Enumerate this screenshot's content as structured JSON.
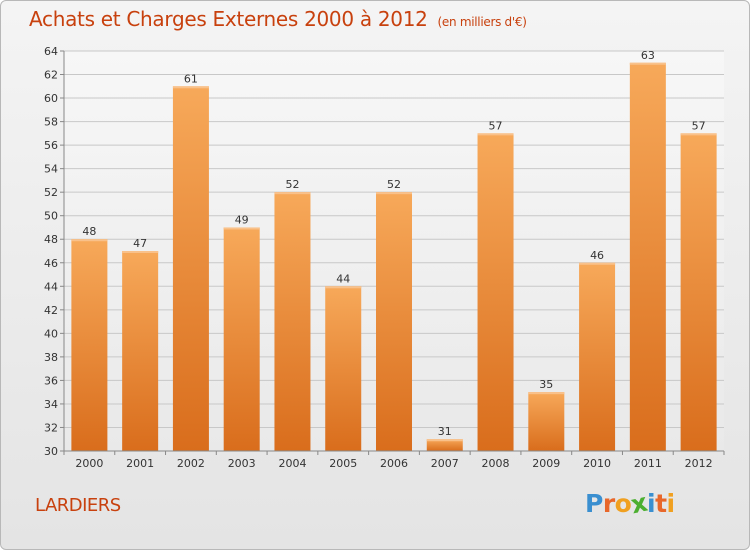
{
  "title": "Achats et Charges Externes 2000 à 2012",
  "subtitle": "(en milliers d'€)",
  "commune": "LARDIERS",
  "brand": {
    "letters": [
      "P",
      "r",
      "o",
      "x",
      "i",
      "t",
      "i"
    ],
    "colors": [
      "#3a8fd0",
      "#e8672a",
      "#f0a020",
      "#4caf30",
      "#3a8fd0",
      "#e8672a",
      "#f0a020"
    ]
  },
  "colors": {
    "title": "#c8410e",
    "bar_top": "#f7a95a",
    "bar_bottom": "#d96d1c",
    "grid": "#c8c8c8",
    "axis_text": "#333333"
  },
  "chart_data": {
    "type": "bar",
    "categories": [
      "2000",
      "2001",
      "2002",
      "2003",
      "2004",
      "2005",
      "2006",
      "2007",
      "2008",
      "2009",
      "2010",
      "2011",
      "2012"
    ],
    "values": [
      48,
      47,
      61,
      49,
      52,
      44,
      52,
      31,
      57,
      35,
      46,
      63,
      57
    ],
    "data_labels": [
      "48",
      "47",
      "61",
      "49",
      "52",
      "44",
      "52",
      "31",
      "57",
      "35",
      "46",
      "63",
      "57"
    ],
    "title": "Achats et Charges Externes 2000 à 2012",
    "ylabel": "",
    "xlabel": "",
    "ylim": [
      30,
      64
    ],
    "yticks": [
      30,
      32,
      34,
      36,
      38,
      40,
      42,
      44,
      46,
      48,
      50,
      52,
      54,
      56,
      58,
      60,
      62,
      64
    ],
    "ytick_labels": [
      "30",
      "32",
      "34",
      "36",
      "38",
      "40",
      "42",
      "44",
      "46",
      "48",
      "50",
      "52",
      "54",
      "56",
      "58",
      "60",
      "62",
      "64"
    ],
    "grid": true,
    "legend": "none"
  }
}
